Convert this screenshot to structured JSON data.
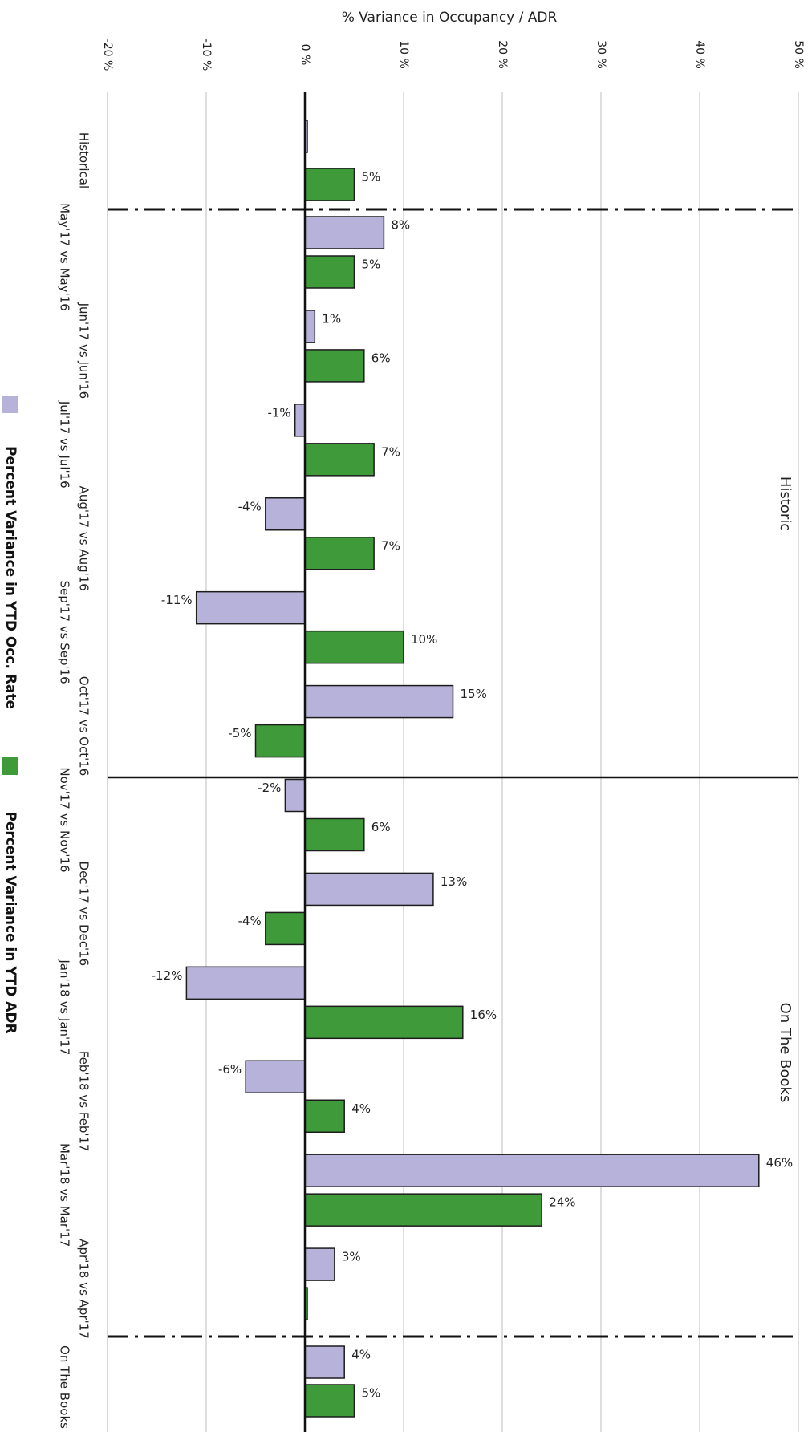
{
  "chart_data": {
    "type": "bar",
    "orientation": "horizontal",
    "title": "",
    "xlabel": "% Variance in Occupancy / ADR",
    "ylabel": "",
    "xlim": [
      -20,
      50
    ],
    "ticks": [
      -20,
      -10,
      0,
      10,
      20,
      30,
      40,
      50
    ],
    "tick_labels": [
      "-20 %",
      "-10 %",
      "0 %",
      "10 %",
      "20 %",
      "30 %",
      "40 %",
      "50 %"
    ],
    "grid": true,
    "legend_position": "bottom",
    "categories": [
      "Historical",
      "May'17 vs May'16",
      "Jun'17 vs Jun'16",
      "Jul'17 vs Jul'16",
      "Aug'17 vs Aug'16",
      "Sep'17 vs Sep'16",
      "Oct'17 vs Oct'16",
      "Nov'17 vs Nov'16",
      "Dec'17 vs Dec'16",
      "Jan'18 vs Jan'17",
      "Feb'18 vs Feb'17",
      "Mar'18 vs Mar'17",
      "Apr'18 vs Apr'17",
      "On The Books"
    ],
    "series": [
      {
        "name": "Percent Variance in YTD Occ. Rate",
        "color": "#b7b2d9",
        "values": [
          0,
          8,
          1,
          -1,
          -4,
          -11,
          15,
          -2,
          13,
          -12,
          -6,
          46,
          3,
          4
        ],
        "labels": [
          "",
          "8%",
          "1%",
          "-1%",
          "-4%",
          "-11%",
          "15%",
          "-2%",
          "13%",
          "-12%",
          "-6%",
          "46%",
          "3%",
          "4%"
        ]
      },
      {
        "name": "Percent Variance in YTD ADR",
        "color": "#3f9a3a",
        "values": [
          5,
          5,
          6,
          7,
          7,
          10,
          -5,
          6,
          -4,
          16,
          4,
          24,
          0,
          5
        ],
        "labels": [
          "5%",
          "5%",
          "6%",
          "7%",
          "7%",
          "10%",
          "-5%",
          "6%",
          "-4%",
          "16%",
          "4%",
          "24%",
          "",
          "5%"
        ]
      }
    ],
    "regions": [
      {
        "label": "Historic",
        "from_category": "May'17 vs May'16",
        "to_category": "Oct'17 vs Oct'16"
      },
      {
        "label": "On The Books",
        "from_category": "Nov'17 vs Nov'16",
        "to_category": "Apr'18 vs Apr'17"
      }
    ]
  }
}
